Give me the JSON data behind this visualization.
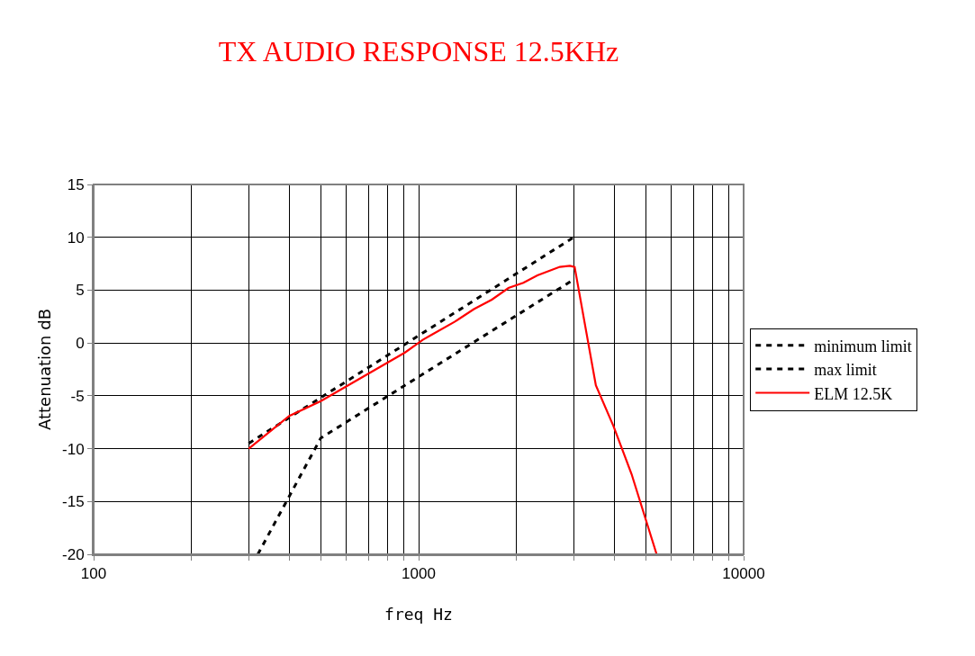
{
  "chart_data": {
    "type": "line",
    "title": "TX AUDIO RESPONSE 12.5KHz",
    "xlabel": "freq Hz",
    "ylabel": "Attenuation dB",
    "log": "x",
    "grid": true,
    "legend": "right",
    "marker": "none",
    "xlim": [
      100,
      10000
    ],
    "xticks": [
      100,
      {
        "value": 200,
        "label": null
      },
      {
        "value": 300,
        "label": null
      },
      {
        "value": 400,
        "label": null
      },
      {
        "value": 500,
        "label": null
      },
      {
        "value": 600,
        "label": null
      },
      {
        "value": 700,
        "label": null
      },
      {
        "value": 800,
        "label": null
      },
      {
        "value": 900,
        "label": null
      },
      1000,
      {
        "value": 2000,
        "label": null
      },
      {
        "value": 3000,
        "label": null
      },
      {
        "value": 4000,
        "label": null
      },
      {
        "value": 5000,
        "label": null
      },
      {
        "value": 6000,
        "label": null
      },
      {
        "value": 7000,
        "label": null
      },
      {
        "value": 8000,
        "label": null
      },
      {
        "value": 9000,
        "label": null
      },
      10000
    ],
    "ylim": [
      -20,
      15
    ],
    "yticks": [
      -20,
      -15,
      -10,
      -5,
      0,
      5,
      10,
      15
    ],
    "series": [
      {
        "name": "minimum limit",
        "color": "#000000",
        "line_style": "dashed",
        "x": [
          320,
          500,
          3000
        ],
        "values": [
          -20,
          -9,
          6
        ]
      },
      {
        "name": "max limit",
        "color": "#000000",
        "line_style": "dashed",
        "x": [
          300,
          3000
        ],
        "values": [
          -9.5,
          10
        ]
      },
      {
        "name": "ELM 12.5K",
        "color": "#ff0000",
        "line_style": "solid",
        "x": [
          300,
          400,
          500,
          908,
          1030,
          1100,
          1290,
          1480,
          1680,
          1890,
          2100,
          2320,
          2720,
          2920,
          3020,
          3510,
          3980,
          4520,
          5400
        ],
        "values": [
          -10,
          -6.9,
          -5.5,
          -0.9,
          0.3,
          0.8,
          2,
          3.2,
          4.1,
          5.2,
          5.7,
          6.4,
          7.2,
          7.3,
          7.2,
          -4,
          -7.9,
          -12.4,
          -20
        ]
      }
    ]
  }
}
